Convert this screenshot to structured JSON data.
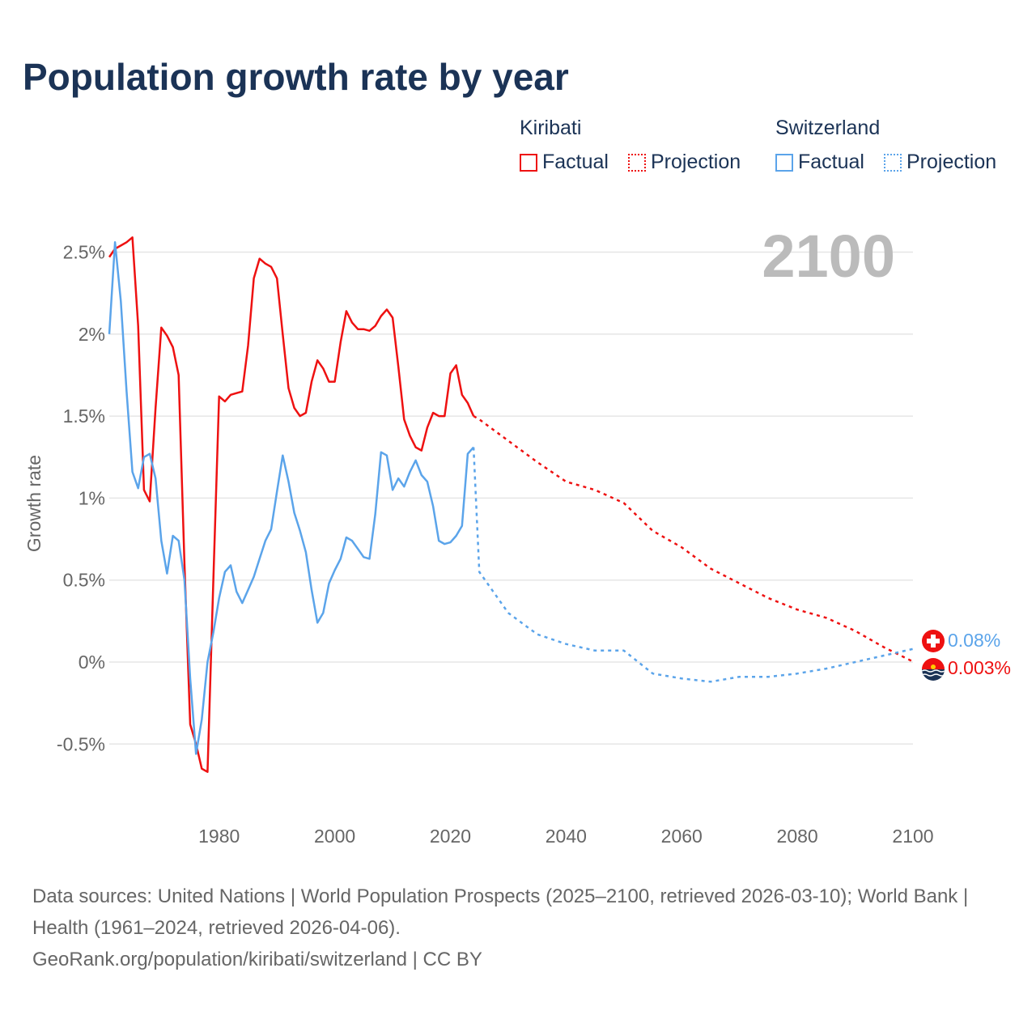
{
  "title": "Population growth rate by year",
  "legend": {
    "groups": [
      {
        "name": "Kiribati",
        "color": "#ee1111",
        "factual": "Factual",
        "projection": "Projection"
      },
      {
        "name": "Switzerland",
        "color": "#5ba4ea",
        "factual": "Factual",
        "projection": "Projection"
      }
    ]
  },
  "chart_data": {
    "type": "line",
    "title": "Population growth rate by year",
    "xlabel": "",
    "ylabel": "Growth rate",
    "xlim": [
      1961,
      2100
    ],
    "ylim": [
      -0.85,
      2.75
    ],
    "xticks": [
      1980,
      2000,
      2020,
      2040,
      2060,
      2080,
      2100
    ],
    "xtick_labels": [
      "1980",
      "2000",
      "2020",
      "2040",
      "2060",
      "2080",
      "2100"
    ],
    "yticks": [
      -0.5,
      0,
      0.5,
      1,
      1.5,
      2,
      2.5
    ],
    "ytick_labels": [
      "-0.5%",
      "0%",
      "0.5%",
      "1%",
      "1.5%",
      "2%",
      "2.5%"
    ],
    "grid": true,
    "year_label": "2100",
    "series": [
      {
        "name": "Kiribati Factual",
        "color": "#ee1111",
        "dashed": false,
        "x0": 1961,
        "values": [
          2.47,
          2.52,
          2.54,
          2.56,
          2.59,
          2.05,
          1.05,
          0.98,
          1.55,
          2.04,
          1.99,
          1.92,
          1.75,
          0.6,
          -0.38,
          -0.5,
          -0.65,
          -0.67,
          0.5,
          1.62,
          1.59,
          1.63,
          1.64,
          1.65,
          1.93,
          2.34,
          2.46,
          2.43,
          2.41,
          2.34,
          2.0,
          1.67,
          1.55,
          1.5,
          1.52,
          1.71,
          1.84,
          1.79,
          1.71,
          1.71,
          1.95,
          2.14,
          2.07,
          2.03,
          2.03,
          2.02,
          2.05,
          2.11,
          2.15,
          2.1,
          1.8,
          1.48,
          1.38,
          1.31,
          1.29,
          1.43,
          1.52,
          1.5,
          1.5,
          1.76,
          1.81,
          1.63,
          1.58,
          1.5
        ]
      },
      {
        "name": "Kiribati Projection",
        "color": "#ee1111",
        "dashed": true,
        "x": [
          2024,
          2025,
          2030,
          2035,
          2040,
          2045,
          2050,
          2055,
          2060,
          2065,
          2070,
          2075,
          2080,
          2085,
          2090,
          2095,
          2100
        ],
        "values": [
          1.5,
          1.48,
          1.35,
          1.22,
          1.1,
          1.05,
          0.97,
          0.8,
          0.7,
          0.57,
          0.48,
          0.39,
          0.32,
          0.27,
          0.19,
          0.09,
          0.003
        ]
      },
      {
        "name": "Switzerland Factual",
        "color": "#5ba4ea",
        "dashed": false,
        "x0": 1961,
        "values": [
          2.0,
          2.56,
          2.2,
          1.65,
          1.16,
          1.06,
          1.25,
          1.27,
          1.12,
          0.74,
          0.54,
          0.77,
          0.74,
          0.5,
          -0.1,
          -0.56,
          -0.35,
          0.0,
          0.18,
          0.39,
          0.55,
          0.59,
          0.43,
          0.36,
          0.44,
          0.52,
          0.63,
          0.74,
          0.81,
          1.04,
          1.26,
          1.1,
          0.91,
          0.8,
          0.67,
          0.44,
          0.24,
          0.3,
          0.48,
          0.56,
          0.63,
          0.76,
          0.74,
          0.69,
          0.64,
          0.63,
          0.9,
          1.28,
          1.26,
          1.05,
          1.12,
          1.07,
          1.16,
          1.23,
          1.14,
          1.1,
          0.95,
          0.74,
          0.72,
          0.73,
          0.77,
          0.83,
          1.27,
          1.31
        ]
      },
      {
        "name": "Switzerland Projection",
        "color": "#5ba4ea",
        "dashed": true,
        "x": [
          2024,
          2025,
          2030,
          2035,
          2040,
          2045,
          2050,
          2055,
          2060,
          2065,
          2070,
          2075,
          2080,
          2085,
          2090,
          2095,
          2100
        ],
        "values": [
          1.31,
          0.55,
          0.3,
          0.17,
          0.11,
          0.07,
          0.07,
          -0.07,
          -0.1,
          -0.12,
          -0.09,
          -0.09,
          -0.07,
          -0.04,
          0.0,
          0.04,
          0.08
        ]
      }
    ],
    "end_labels": [
      {
        "country": "Switzerland",
        "label": "0.08%",
        "color": "#5ba4ea"
      },
      {
        "country": "Kiribati",
        "label": "0.003%",
        "color": "#ee1111"
      }
    ]
  },
  "footer": {
    "sources": "Data sources: United Nations | World Population Prospects (2025–2100, retrieved 2026-03-10); World Bank | Health (1961–2024, retrieved 2026-04-06).",
    "link": "GeoRank.org/population/kiribati/switzerland | CC BY"
  }
}
